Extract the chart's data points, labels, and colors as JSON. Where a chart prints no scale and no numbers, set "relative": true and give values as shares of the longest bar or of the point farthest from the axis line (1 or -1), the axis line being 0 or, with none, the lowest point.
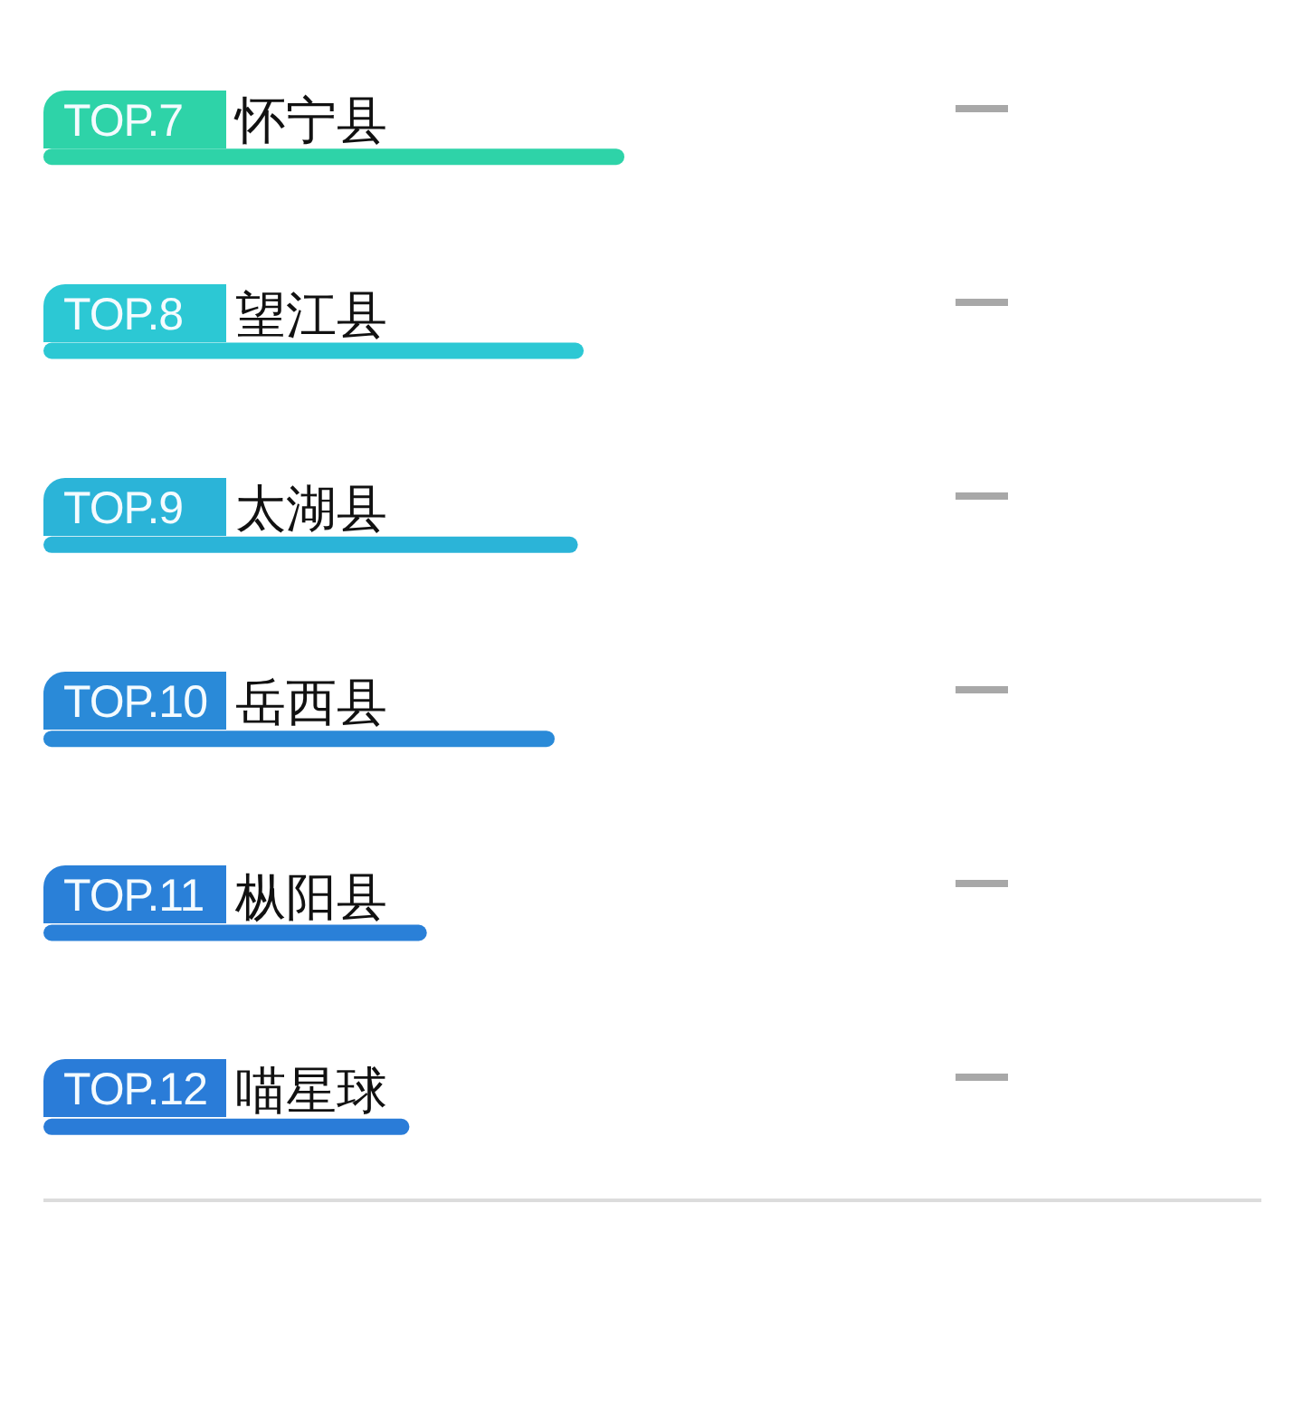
{
  "chart_data": {
    "type": "bar",
    "orientation": "horizontal",
    "relative": true,
    "categories": [
      "怀宁县",
      "望江县",
      "太湖县",
      "岳西县",
      "枞阳县",
      "喵星球"
    ],
    "values": [
      1,
      0.93,
      0.92,
      0.88,
      0.66,
      0.63
    ],
    "colors": [
      "#2ed3a8",
      "#2cc8d4",
      "#2bb4d8",
      "#2a8ad8",
      "#2a80d8",
      "#2a7cd8"
    ],
    "annotations": [
      "TOP.7",
      "TOP.8",
      "TOP.9",
      "TOP.10",
      "TOP.11",
      "TOP.12"
    ]
  }
}
